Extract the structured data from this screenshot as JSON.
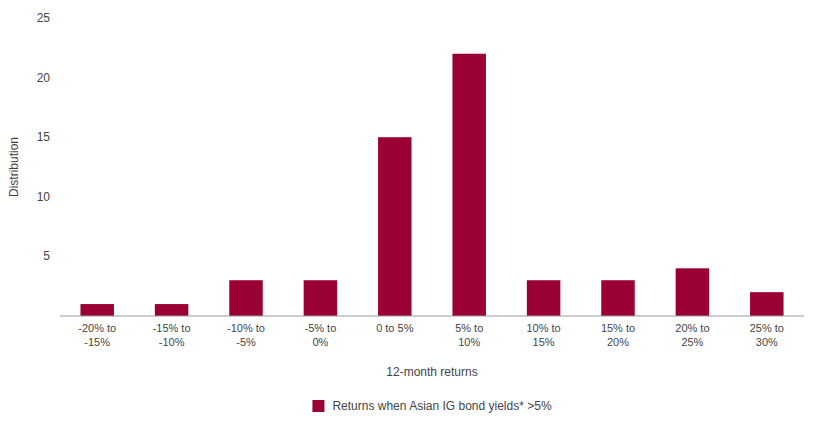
{
  "chart_data": {
    "type": "bar",
    "categories": [
      "-20% to\n-15%",
      "-15% to\n-10%",
      "-10% to\n-5%",
      "-5% to\n0%",
      "0 to 5%",
      "5% to\n10%",
      "10% to\n15%",
      "15% to\n20%",
      "20% to\n25%",
      "25% to\n30%"
    ],
    "series": [
      {
        "name": "Returns when Asian IG bond yields* >5%",
        "color": "#9B0035",
        "values": [
          1,
          1,
          3,
          3,
          15,
          22,
          3,
          3,
          4,
          2
        ]
      }
    ],
    "xlabel": "12-month returns",
    "ylabel": "Distribution",
    "ylim": [
      0,
      25
    ],
    "yticks": [
      5,
      10,
      15,
      20,
      25
    ],
    "grid": false,
    "legend": "bottom"
  }
}
